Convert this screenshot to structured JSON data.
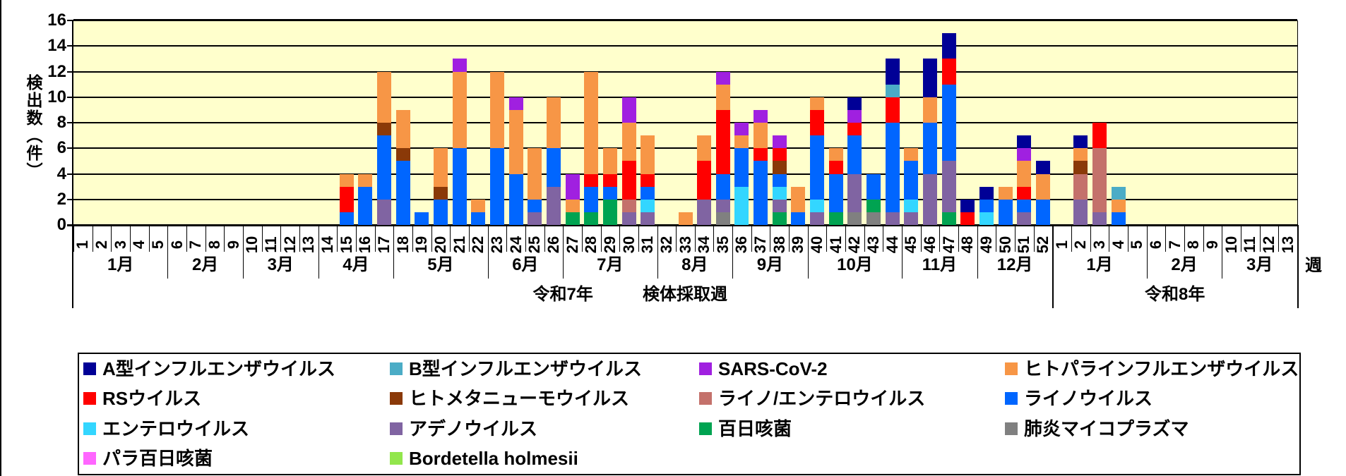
{
  "y_axis": {
    "title": "検出数（件）",
    "max": 16,
    "step": 2
  },
  "x_axis": {
    "axis_title": "検体採取週",
    "unit_label": "週",
    "years": [
      {
        "label": "令和7年",
        "months": [
          {
            "label": "1月",
            "weeks": 5
          },
          {
            "label": "2月",
            "weeks": 4
          },
          {
            "label": "3月",
            "weeks": 4
          },
          {
            "label": "4月",
            "weeks": 4
          },
          {
            "label": "5月",
            "weeks": 5
          },
          {
            "label": "6月",
            "weeks": 4
          },
          {
            "label": "7月",
            "weeks": 5
          },
          {
            "label": "8月",
            "weeks": 4
          },
          {
            "label": "9月",
            "weeks": 4
          },
          {
            "label": "10月",
            "weeks": 5
          },
          {
            "label": "11月",
            "weeks": 4
          },
          {
            "label": "12月",
            "weeks": 4
          }
        ]
      },
      {
        "label": "令和8年",
        "months": [
          {
            "label": "1月",
            "weeks": 5
          },
          {
            "label": "2月",
            "weeks": 4
          },
          {
            "label": "3月",
            "weeks": 4
          }
        ]
      }
    ]
  },
  "chart_data": {
    "type": "bar",
    "stacked": true,
    "background": "#FFFFCC",
    "ylim": [
      0,
      16
    ],
    "grid": "horizontal",
    "legend_position": "bottom",
    "x_description": "Weeks 1-52 of Reiwa 7 followed by weeks 1-13 of Reiwa 8 (65 slots)",
    "series": [
      {
        "name": "A型インフルエンザウイルス",
        "color": "#000096",
        "values": [
          0,
          0,
          0,
          0,
          0,
          0,
          0,
          0,
          0,
          0,
          0,
          0,
          0,
          0,
          0,
          0,
          0,
          0,
          0,
          0,
          0,
          0,
          0,
          0,
          0,
          0,
          0,
          0,
          0,
          0,
          0,
          0,
          0,
          0,
          0,
          0,
          0,
          0,
          0,
          0,
          0,
          1,
          0,
          2,
          0,
          3,
          2,
          1,
          1,
          0,
          1,
          1,
          0,
          1,
          0,
          0,
          0,
          0,
          0,
          0,
          0,
          0,
          0,
          0,
          0
        ]
      },
      {
        "name": "B型インフルエンザウイルス",
        "color": "#4BACC6",
        "values": [
          0,
          0,
          0,
          0,
          0,
          0,
          0,
          0,
          0,
          0,
          0,
          0,
          0,
          0,
          0,
          0,
          0,
          0,
          0,
          0,
          0,
          0,
          0,
          0,
          0,
          0,
          0,
          0,
          0,
          0,
          0,
          0,
          0,
          0,
          0,
          0,
          0,
          0,
          0,
          0,
          0,
          0,
          0,
          1,
          0,
          0,
          0,
          0,
          0,
          0,
          0,
          0,
          0,
          0,
          0,
          1,
          0,
          0,
          0,
          0,
          0,
          0,
          0,
          0,
          0
        ]
      },
      {
        "name": "SARS-CoV-2",
        "color": "#A020E0",
        "values": [
          0,
          0,
          0,
          0,
          0,
          0,
          0,
          0,
          0,
          0,
          0,
          0,
          0,
          0,
          0,
          0,
          0,
          0,
          0,
          0,
          1,
          0,
          0,
          1,
          0,
          0,
          2,
          0,
          0,
          2,
          0,
          0,
          0,
          0,
          1,
          1,
          1,
          1,
          0,
          0,
          0,
          1,
          0,
          0,
          0,
          0,
          0,
          0,
          0,
          0,
          1,
          0,
          0,
          0,
          0,
          0,
          0,
          0,
          0,
          0,
          0,
          0,
          0,
          0,
          0
        ]
      },
      {
        "name": "ヒトパラインフルエンザウイルス",
        "color": "#F79646",
        "values": [
          0,
          0,
          0,
          0,
          0,
          0,
          0,
          0,
          0,
          0,
          0,
          0,
          0,
          0,
          1,
          1,
          4,
          3,
          0,
          3,
          6,
          1,
          6,
          5,
          4,
          4,
          1,
          8,
          2,
          3,
          3,
          0,
          1,
          2,
          2,
          1,
          2,
          0,
          2,
          1,
          1,
          0,
          0,
          0,
          1,
          2,
          0,
          0,
          0,
          1,
          2,
          2,
          0,
          1,
          0,
          1,
          0,
          0,
          0,
          0,
          0,
          0,
          0,
          0,
          0
        ]
      },
      {
        "name": "RSウイルス",
        "color": "#FF0000",
        "values": [
          0,
          0,
          0,
          0,
          0,
          0,
          0,
          0,
          0,
          0,
          0,
          0,
          0,
          0,
          2,
          0,
          0,
          0,
          0,
          0,
          0,
          0,
          0,
          0,
          0,
          0,
          0,
          1,
          1,
          3,
          1,
          0,
          0,
          3,
          5,
          0,
          1,
          1,
          0,
          2,
          1,
          1,
          0,
          2,
          0,
          0,
          2,
          1,
          0,
          0,
          1,
          0,
          0,
          0,
          2,
          0,
          0,
          0,
          0,
          0,
          0,
          0,
          0,
          0,
          0
        ]
      },
      {
        "name": "ヒトメタニューモウイルス",
        "color": "#8A3908",
        "values": [
          0,
          0,
          0,
          0,
          0,
          0,
          0,
          0,
          0,
          0,
          0,
          0,
          0,
          0,
          0,
          0,
          1,
          1,
          0,
          1,
          0,
          0,
          0,
          0,
          0,
          0,
          0,
          0,
          0,
          0,
          0,
          0,
          0,
          0,
          0,
          0,
          0,
          1,
          0,
          0,
          0,
          0,
          0,
          0,
          0,
          0,
          0,
          0,
          0,
          0,
          0,
          0,
          0,
          1,
          0,
          0,
          0,
          0,
          0,
          0,
          0,
          0,
          0,
          0,
          0
        ]
      },
      {
        "name": "ライノ/エンテロウイルス",
        "color": "#C4716B",
        "values": [
          0,
          0,
          0,
          0,
          0,
          0,
          0,
          0,
          0,
          0,
          0,
          0,
          0,
          0,
          0,
          0,
          0,
          0,
          0,
          0,
          0,
          0,
          0,
          0,
          0,
          0,
          0,
          0,
          0,
          1,
          0,
          0,
          0,
          0,
          0,
          0,
          0,
          0,
          0,
          0,
          0,
          0,
          0,
          0,
          0,
          0,
          0,
          0,
          0,
          0,
          0,
          0,
          0,
          2,
          5,
          0,
          0,
          0,
          0,
          0,
          0,
          0,
          0,
          0,
          0
        ]
      },
      {
        "name": "ライノウイルス",
        "color": "#0066FF",
        "values": [
          0,
          0,
          0,
          0,
          0,
          0,
          0,
          0,
          0,
          0,
          0,
          0,
          0,
          0,
          1,
          3,
          5,
          5,
          1,
          2,
          6,
          1,
          6,
          4,
          1,
          3,
          0,
          2,
          1,
          0,
          1,
          0,
          0,
          0,
          2,
          3,
          5,
          1,
          1,
          5,
          3,
          3,
          2,
          7,
          3,
          4,
          6,
          0,
          1,
          2,
          1,
          2,
          0,
          0,
          0,
          1,
          0,
          0,
          0,
          0,
          0,
          0,
          0,
          0,
          0
        ]
      },
      {
        "name": "エンテロウイルス",
        "color": "#33D6FF",
        "values": [
          0,
          0,
          0,
          0,
          0,
          0,
          0,
          0,
          0,
          0,
          0,
          0,
          0,
          0,
          0,
          0,
          0,
          0,
          0,
          0,
          0,
          0,
          0,
          0,
          0,
          0,
          0,
          0,
          0,
          0,
          1,
          0,
          0,
          0,
          0,
          3,
          0,
          1,
          0,
          1,
          0,
          0,
          0,
          0,
          1,
          0,
          0,
          0,
          1,
          0,
          0,
          0,
          0,
          0,
          0,
          0,
          0,
          0,
          0,
          0,
          0,
          0,
          0,
          0,
          0
        ]
      },
      {
        "name": "アデノウイルス",
        "color": "#8064A2",
        "values": [
          0,
          0,
          0,
          0,
          0,
          0,
          0,
          0,
          0,
          0,
          0,
          0,
          0,
          0,
          0,
          0,
          2,
          0,
          0,
          0,
          0,
          0,
          0,
          0,
          1,
          3,
          0,
          0,
          0,
          1,
          1,
          0,
          0,
          2,
          1,
          0,
          0,
          1,
          0,
          1,
          0,
          3,
          0,
          1,
          1,
          4,
          4,
          0,
          0,
          0,
          1,
          0,
          0,
          2,
          1,
          0,
          0,
          0,
          0,
          0,
          0,
          0,
          0,
          0,
          0
        ]
      },
      {
        "name": "百日咳菌",
        "color": "#00A351",
        "values": [
          0,
          0,
          0,
          0,
          0,
          0,
          0,
          0,
          0,
          0,
          0,
          0,
          0,
          0,
          0,
          0,
          0,
          0,
          0,
          0,
          0,
          0,
          0,
          0,
          0,
          0,
          1,
          1,
          2,
          0,
          0,
          0,
          0,
          0,
          0,
          0,
          0,
          1,
          0,
          0,
          1,
          0,
          1,
          0,
          0,
          0,
          1,
          0,
          0,
          0,
          0,
          0,
          0,
          0,
          0,
          0,
          0,
          0,
          0,
          0,
          0,
          0,
          0,
          0,
          0
        ]
      },
      {
        "name": "肺炎マイコプラズマ",
        "color": "#808080",
        "values": [
          0,
          0,
          0,
          0,
          0,
          0,
          0,
          0,
          0,
          0,
          0,
          0,
          0,
          0,
          0,
          0,
          0,
          0,
          0,
          0,
          0,
          0,
          0,
          0,
          0,
          0,
          0,
          0,
          0,
          0,
          0,
          0,
          0,
          0,
          1,
          0,
          0,
          0,
          0,
          0,
          0,
          1,
          1,
          0,
          0,
          0,
          0,
          0,
          0,
          0,
          0,
          0,
          0,
          0,
          0,
          0,
          0,
          0,
          0,
          0,
          0,
          0,
          0,
          0,
          0
        ]
      },
      {
        "name": "パラ百日咳菌",
        "color": "#FF66FF",
        "values": [
          0,
          0,
          0,
          0,
          0,
          0,
          0,
          0,
          0,
          0,
          0,
          0,
          0,
          0,
          0,
          0,
          0,
          0,
          0,
          0,
          0,
          0,
          0,
          0,
          0,
          0,
          0,
          0,
          0,
          0,
          0,
          0,
          0,
          0,
          0,
          0,
          0,
          0,
          0,
          0,
          0,
          0,
          0,
          0,
          0,
          0,
          0,
          0,
          0,
          0,
          0,
          0,
          0,
          0,
          0,
          0,
          0,
          0,
          0,
          0,
          0,
          0,
          0,
          0,
          0
        ]
      },
      {
        "name": "Bordetella holmesii",
        "color": "#92E64C",
        "values": [
          0,
          0,
          0,
          0,
          0,
          0,
          0,
          0,
          0,
          0,
          0,
          0,
          0,
          0,
          0,
          0,
          0,
          0,
          0,
          0,
          0,
          0,
          0,
          0,
          0,
          0,
          0,
          0,
          0,
          0,
          0,
          0,
          0,
          0,
          0,
          0,
          0,
          0,
          0,
          0,
          0,
          0,
          0,
          0,
          0,
          0,
          0,
          0,
          0,
          0,
          0,
          0,
          0,
          0,
          0,
          0,
          0,
          0,
          0,
          0,
          0,
          0,
          0,
          0,
          0
        ]
      }
    ]
  }
}
